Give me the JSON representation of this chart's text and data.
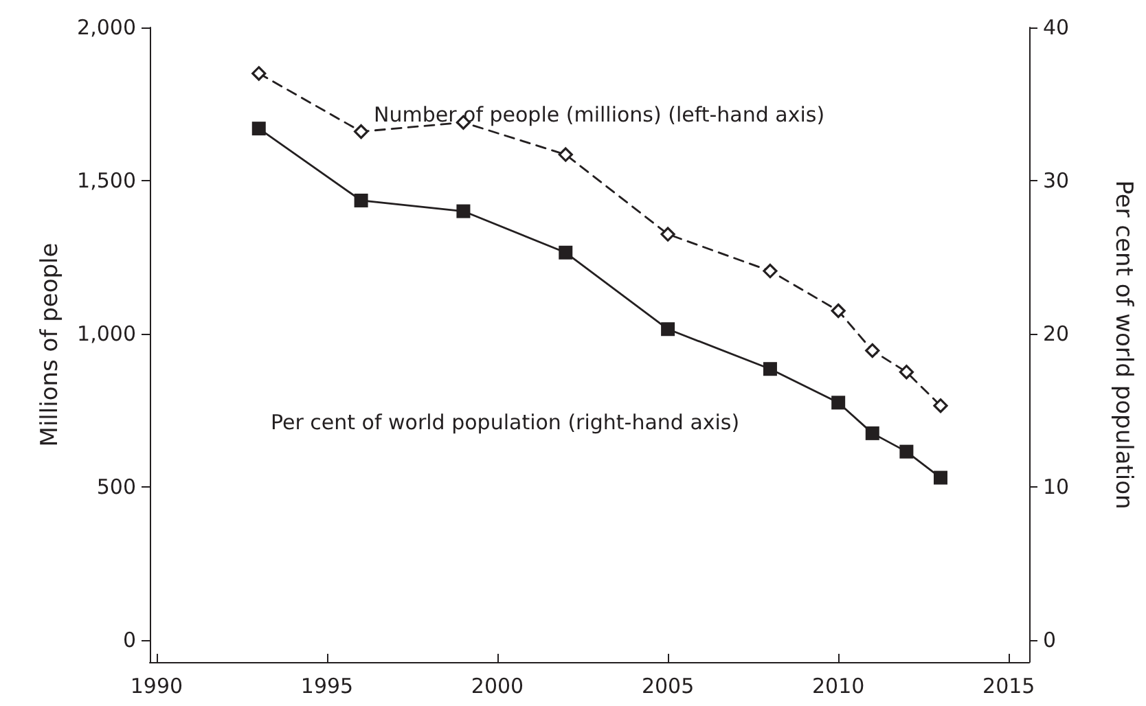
{
  "chart_data": {
    "type": "line",
    "ylabel": "Millions of people",
    "y2label": "Per cent of world population",
    "x": [
      1993,
      1996,
      1999,
      2002,
      2005,
      2008,
      2010,
      2011,
      2012,
      2013
    ],
    "series": [
      {
        "name": "Number of people (millions) (left-hand axis)",
        "color": "#231f20",
        "marker": "diamond",
        "line_style": "dashed",
        "values": [
          1850,
          1660,
          1690,
          1585,
          1325,
          1205,
          1075,
          945,
          875,
          765
        ]
      },
      {
        "name": "Per cent of world population (right-hand axis)",
        "color": "#231f20",
        "marker": "square",
        "line_style": "solid",
        "axis": "y2",
        "values": [
          33.4,
          28.7,
          28.0,
          25.3,
          20.3,
          17.7,
          15.5,
          13.5,
          12.3,
          10.6
        ]
      }
    ],
    "xlim": [
      1989.8,
      2015.6
    ],
    "xticks": [
      1990,
      1995,
      2000,
      2005,
      2010,
      2015
    ],
    "ylim": [
      -72,
      2000
    ],
    "yticks": [
      {
        "value": 0,
        "label": "0"
      },
      {
        "value": 500,
        "label": "500"
      },
      {
        "value": 1000,
        "label": "1,000"
      },
      {
        "value": 1500,
        "label": "1,500"
      },
      {
        "value": 2000,
        "label": "2,000"
      }
    ],
    "y2lim": [
      -1.44,
      40
    ],
    "y2ticks": [
      0,
      10,
      20,
      30,
      40
    ],
    "grid": false
  }
}
